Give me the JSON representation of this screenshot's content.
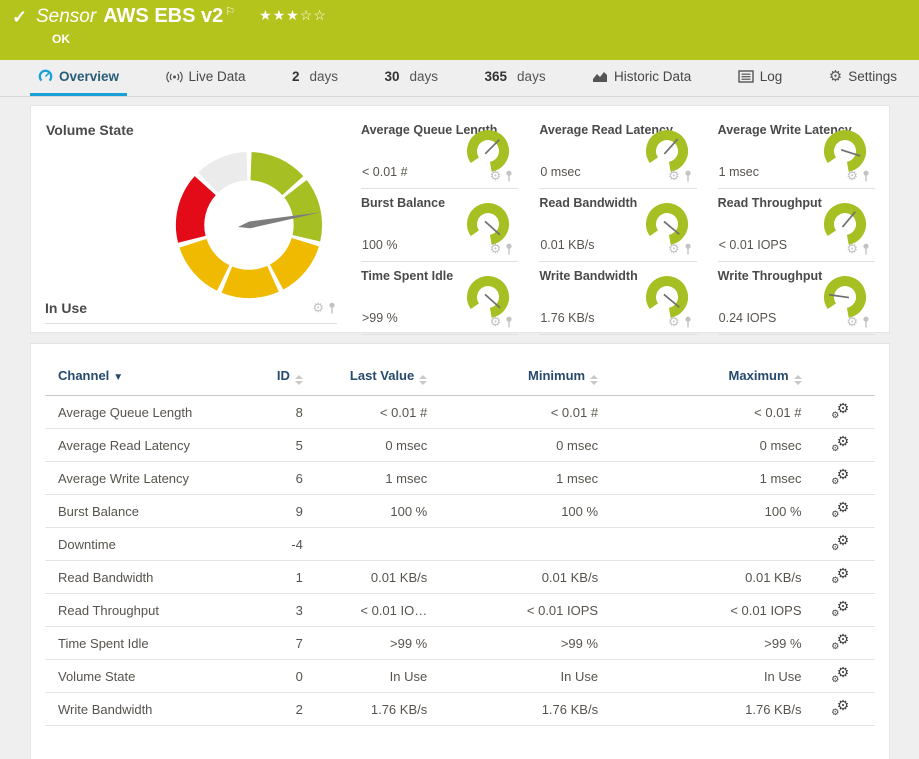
{
  "colors": {
    "brand-green": "#b5c31d",
    "blue": "#1aa0d8",
    "gauge-green": "#a6bf22",
    "gauge-yellow": "#f0ba00",
    "gauge-red": "#e30b17",
    "gauge-gray": "#ebebeb",
    "needle-gray": "#7d7d7d"
  },
  "header": {
    "kind_label": "Sensor",
    "sensor_name": "AWS EBS v2",
    "status": "OK",
    "stars_filled": "★★★",
    "stars_empty": "☆☆",
    "rating": "3 of 5"
  },
  "tabs": {
    "overview": {
      "label": "Overview"
    },
    "live": {
      "label": "Live Data"
    },
    "d2": {
      "num": "2",
      "unit": "days"
    },
    "d30": {
      "num": "30",
      "unit": "days"
    },
    "d365": {
      "num": "365",
      "unit": "days"
    },
    "historic": {
      "label": "Historic Data"
    },
    "log": {
      "label": "Log"
    },
    "settings": {
      "label": "Settings"
    }
  },
  "volume_gauge": {
    "title": "Volume State",
    "value": "In Use",
    "needle_deg": 80,
    "segments_clockwise_from_top": [
      "green",
      "green",
      "yellow",
      "yellow",
      "yellow",
      "red",
      "gray"
    ]
  },
  "mini_gauges": [
    {
      "title": "Average Queue Length",
      "value": "< 0.01 #",
      "needle_deg": -45
    },
    {
      "title": "Average Read Latency",
      "value": "0 msec",
      "needle_deg": -48
    },
    {
      "title": "Average Write Latency",
      "value": "1 msec",
      "needle_deg": 18
    },
    {
      "title": "Burst Balance",
      "value": "100 %",
      "needle_deg": 42
    },
    {
      "title": "Read Bandwidth",
      "value": "0.01 KB/s",
      "needle_deg": 40
    },
    {
      "title": "Read Throughput",
      "value": "< 0.01 IOPS",
      "needle_deg": -50
    },
    {
      "title": "Time Spent Idle",
      "value": ">99 %",
      "needle_deg": 42
    },
    {
      "title": "Write Bandwidth",
      "value": "1.76 KB/s",
      "needle_deg": 40
    },
    {
      "title": "Write Throughput",
      "value": "0.24 IOPS",
      "needle_deg": 188
    }
  ],
  "table": {
    "columns": {
      "channel": "Channel",
      "id": "ID",
      "last": "Last Value",
      "min": "Minimum",
      "max": "Maximum"
    },
    "rows": [
      {
        "channel": "Average Queue Length",
        "id": "8",
        "last": "< 0.01 #",
        "min": "< 0.01 #",
        "max": "< 0.01 #"
      },
      {
        "channel": "Average Read Latency",
        "id": "5",
        "last": "0 msec",
        "min": "0 msec",
        "max": "0 msec"
      },
      {
        "channel": "Average Write Latency",
        "id": "6",
        "last": "1 msec",
        "min": "1 msec",
        "max": "1 msec"
      },
      {
        "channel": "Burst Balance",
        "id": "9",
        "last": "100 %",
        "min": "100 %",
        "max": "100 %"
      },
      {
        "channel": "Downtime",
        "id": "-4",
        "last": "",
        "min": "",
        "max": ""
      },
      {
        "channel": "Read Bandwidth",
        "id": "1",
        "last": "0.01 KB/s",
        "min": "0.01 KB/s",
        "max": "0.01 KB/s"
      },
      {
        "channel": "Read Throughput",
        "id": "3",
        "last": "< 0.01 IO…",
        "min": "< 0.01 IOPS",
        "max": "< 0.01 IOPS"
      },
      {
        "channel": "Time Spent Idle",
        "id": "7",
        "last": ">99 %",
        "min": ">99 %",
        "max": ">99 %"
      },
      {
        "channel": "Volume State",
        "id": "0",
        "last": "In Use",
        "min": "In Use",
        "max": "In Use"
      },
      {
        "channel": "Write Bandwidth",
        "id": "2",
        "last": "1.76 KB/s",
        "min": "1.76 KB/s",
        "max": "1.76 KB/s"
      }
    ]
  }
}
